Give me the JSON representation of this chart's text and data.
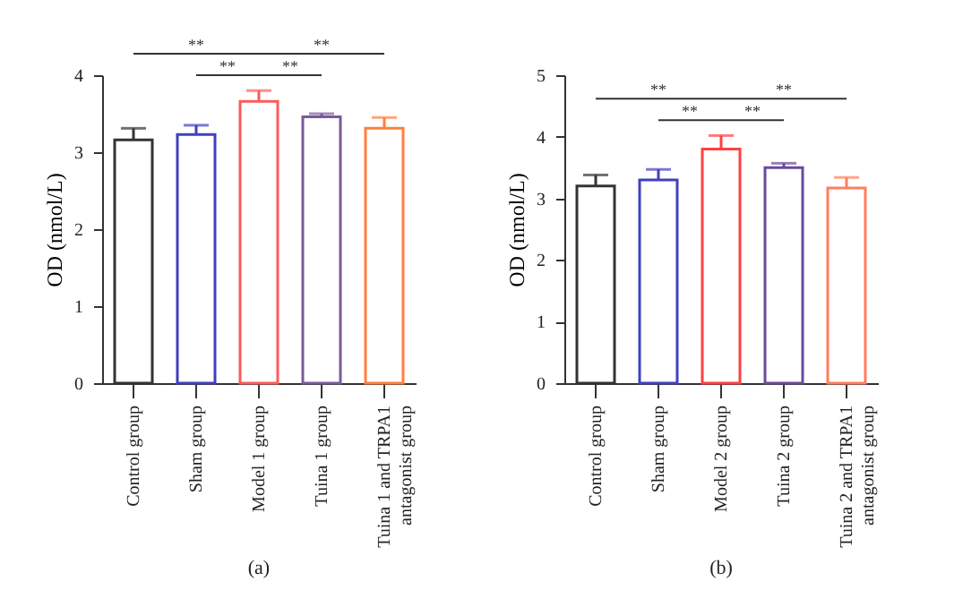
{
  "chart_data": [
    {
      "type": "bar",
      "title": "(a)",
      "ylabel": "OD (nmol/L)",
      "categories": [
        "Control group",
        "Sham group",
        "Model 1 group",
        "Tuina 1 group",
        "Tuina 1 and TRPA1 antagonist group"
      ],
      "values": [
        3.16,
        3.23,
        3.66,
        3.46,
        3.31
      ],
      "errors": [
        0.15,
        0.12,
        0.14,
        0.04,
        0.14
      ],
      "colors": [
        "#333333",
        "#4040c0",
        "#ff5a5a",
        "#7a5a9a",
        "#ff7f3f"
      ],
      "ylim": [
        0,
        4
      ],
      "yticks": [
        0,
        1,
        2,
        3,
        4
      ],
      "grid": false,
      "legend": false,
      "annotations": [
        "**",
        "**",
        "**",
        "**"
      ]
    },
    {
      "type": "bar",
      "title": "(b)",
      "ylabel": "OD (nmol/L)",
      "categories": [
        "Control group",
        "Sham group",
        "Model 2 group",
        "Tuina 2 group",
        "Tuina 2 and TRPA1 antagonist group"
      ],
      "values": [
        3.2,
        3.3,
        3.8,
        3.5,
        3.17
      ],
      "errors": [
        0.18,
        0.17,
        0.22,
        0.07,
        0.17
      ],
      "colors": [
        "#333333",
        "#4040c0",
        "#ff4040",
        "#6a4a9a",
        "#ff7f5f"
      ],
      "ylim": [
        0,
        5
      ],
      "yticks": [
        0,
        1,
        2,
        3,
        4,
        5
      ],
      "grid": false,
      "legend": false,
      "annotations": [
        "**",
        "**",
        "**",
        "**"
      ]
    }
  ]
}
